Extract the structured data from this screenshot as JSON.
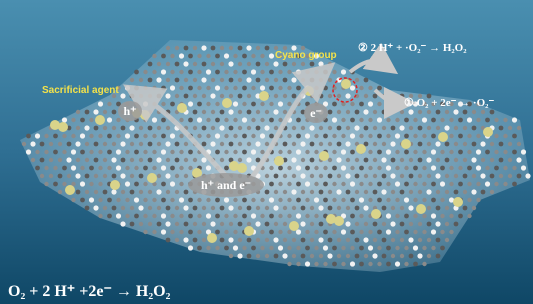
{
  "labels": {
    "sacrificial_agent": "Sacrificial agent",
    "hole": "h⁺",
    "electron": "e⁻",
    "hole_and_electron": "h⁺ and e⁻",
    "cyano_group": "Cyano group",
    "step2": "② 2 H⁺ + ·O₂⁻ → H₂O₂",
    "step1": "① O₂ + 2e⁻ → ·O₂⁻",
    "overall": "O₂ + 2 H⁺ +2e⁻ → H₂O₂"
  }
}
